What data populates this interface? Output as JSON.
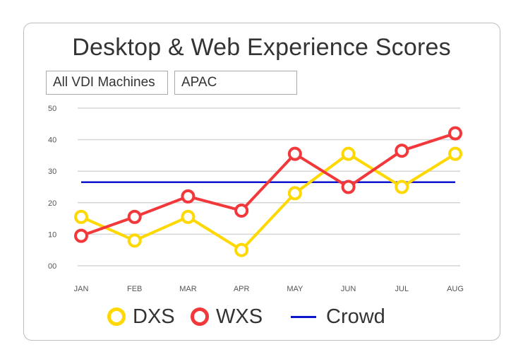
{
  "header": {
    "title": "Desktop & Web Experience Scores"
  },
  "filters": [
    {
      "label": "All VDI Machines"
    },
    {
      "label": "APAC"
    }
  ],
  "colors": {
    "dxs": "#ffd800",
    "wxs": "#f2383a",
    "crowd": "#0d14cc",
    "grid": "#d6d6d6"
  },
  "chart_data": {
    "type": "line",
    "categories": [
      "JAN",
      "FEB",
      "MAR",
      "APR",
      "MAY",
      "JUN",
      "JUL",
      "AUG"
    ],
    "series": [
      {
        "name": "DXS",
        "values": [
          15.5,
          8,
          15.5,
          5,
          23,
          35.5,
          25,
          35.5
        ]
      },
      {
        "name": "WXS",
        "values": [
          9.5,
          15.5,
          22,
          17.5,
          35.5,
          25,
          36.5,
          42
        ]
      },
      {
        "name": "Crowd",
        "values": [
          26.5,
          26.5,
          26.5,
          26.5,
          26.5,
          26.5,
          26.5,
          26.5
        ]
      }
    ],
    "yticks": [
      "00",
      "10",
      "20",
      "30",
      "40",
      "50"
    ],
    "ylim": [
      0,
      50
    ],
    "grid": true,
    "legend": "bottom"
  }
}
